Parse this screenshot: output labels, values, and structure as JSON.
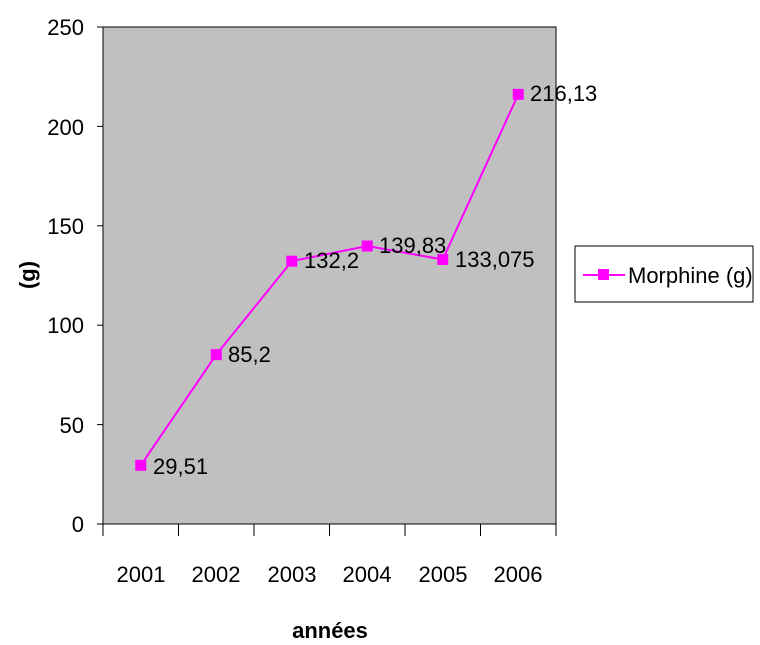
{
  "chart_data": {
    "type": "line",
    "title": "",
    "xlabel": "années",
    "ylabel": "(g)",
    "categories": [
      "2001",
      "2002",
      "2003",
      "2004",
      "2005",
      "2006"
    ],
    "series": [
      {
        "name": "Morphine (g)",
        "values": [
          29.51,
          85.2,
          132.2,
          139.83,
          133.075,
          216.13
        ],
        "labels": [
          "29,51",
          "85,2",
          "132,2",
          "139,83",
          "133,075",
          "216,13"
        ]
      }
    ],
    "ylim": [
      0,
      250
    ],
    "yticks": [
      "0",
      "50",
      "100",
      "150",
      "200",
      "250"
    ],
    "grid": false,
    "legend": "right",
    "colors": {
      "plot_background": "#c0c0c0",
      "series": "#ff00ff",
      "axis": "#000000"
    }
  }
}
